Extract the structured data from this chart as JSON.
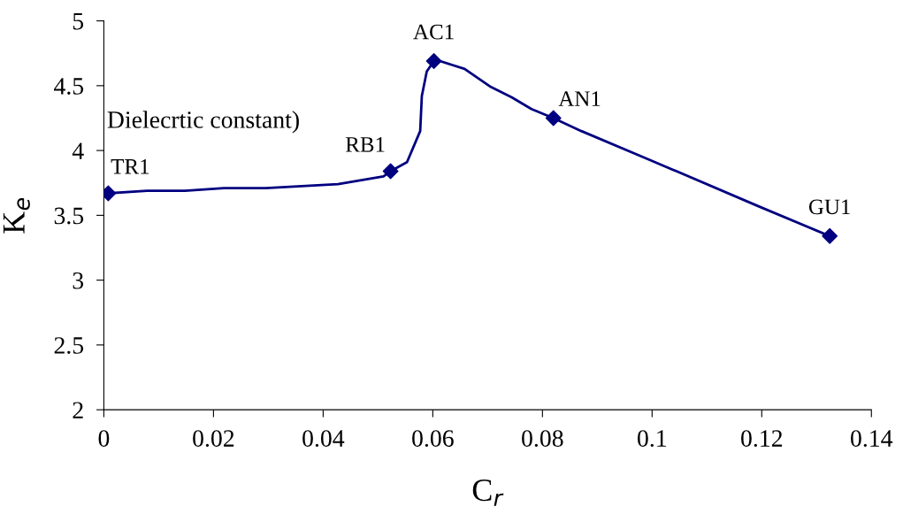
{
  "chart_data": {
    "type": "line",
    "xlabel": "C$_{r}$",
    "ylabel": "K$_{e}$",
    "series": [
      {
        "color": "#000080",
        "marker": "none",
        "x": [
          0.0008,
          0.0079,
          0.0148,
          0.0219,
          0.0295,
          0.0427,
          0.051,
          0.0523,
          0.0553,
          0.0577,
          0.058,
          0.0589,
          0.0602,
          0.0613,
          0.0658,
          0.0706,
          0.0744,
          0.078,
          0.082,
          0.0871,
          0.0989,
          0.1194,
          0.1324
        ],
        "values": [
          3.67,
          3.69,
          3.69,
          3.71,
          3.71,
          3.74,
          3.8,
          3.84,
          3.91,
          4.15,
          4.42,
          4.61,
          4.69,
          4.69,
          4.63,
          4.49,
          4.41,
          4.32,
          4.25,
          4.15,
          3.94,
          3.57,
          3.34
        ]
      },
      {
        "type": "scatter",
        "color": "#000080",
        "marker": "diamond",
        "x": [
          0.0008,
          0.0523,
          0.0602,
          0.082,
          0.1324
        ],
        "values": [
          3.67,
          3.84,
          4.69,
          4.25,
          3.34
        ]
      }
    ],
    "xlim": [
      0,
      0.14
    ],
    "xticks": [
      0,
      0.02,
      0.04,
      0.06,
      0.08,
      0.1,
      0.12,
      0.14
    ],
    "ylim": [
      2,
      5
    ],
    "yticks": [
      2,
      2.5,
      3,
      3.5,
      4,
      4.5,
      5
    ],
    "line_style": "solid",
    "grid": false,
    "legend": false,
    "annotations": [
      {
        "text": "TR1",
        "x": 0.0008,
        "y": 3.67
      },
      {
        "text": "RB1",
        "x": 0.0523,
        "y": 3.84
      },
      {
        "text": "AC1",
        "x": 0.0602,
        "y": 4.69
      },
      {
        "text": "AN1",
        "x": 0.082,
        "y": 4.25
      },
      {
        "text": "GU1",
        "x": 0.1324,
        "y": 3.34
      },
      "Dielecrtic constant)"
    ]
  }
}
